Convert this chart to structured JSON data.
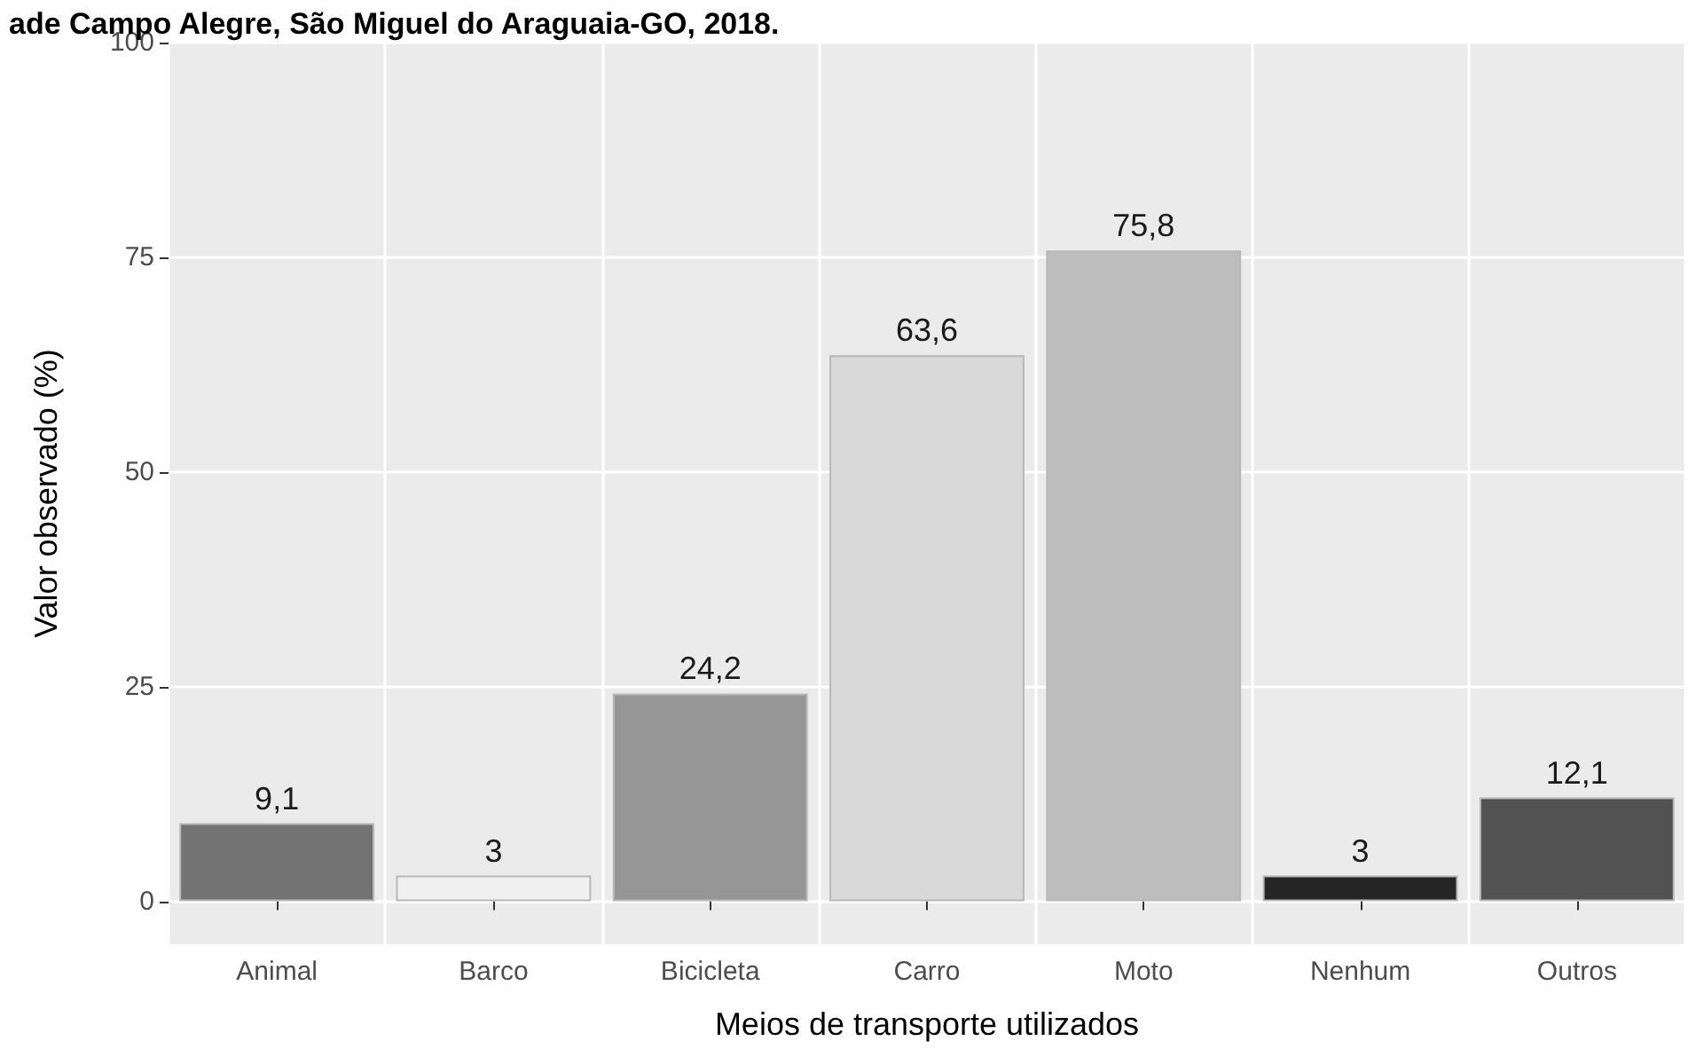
{
  "chart_data": {
    "type": "bar",
    "title": "ade Campo Alegre, São Miguel do Araguaia-GO, 2018.",
    "xlabel": "Meios de transporte utilizados",
    "ylabel": "Valor observado (%)",
    "categories": [
      "Animal",
      "Barco",
      "Bicicleta",
      "Carro",
      "Moto",
      "Nenhum",
      "Outros"
    ],
    "values": [
      9.1,
      3,
      24.2,
      63.6,
      75.8,
      3,
      12.1
    ],
    "value_labels": [
      "9,1",
      "3",
      "24,2",
      "63,6",
      "75,8",
      "3",
      "12,1"
    ],
    "colors": [
      "#737373",
      "#f0f0f0",
      "#969696",
      "#d9d9d9",
      "#bdbdbd",
      "#252525",
      "#525252"
    ],
    "ylim": [
      -5,
      100
    ],
    "yticks": [
      0,
      25,
      50,
      75,
      100
    ],
    "grid": true
  }
}
